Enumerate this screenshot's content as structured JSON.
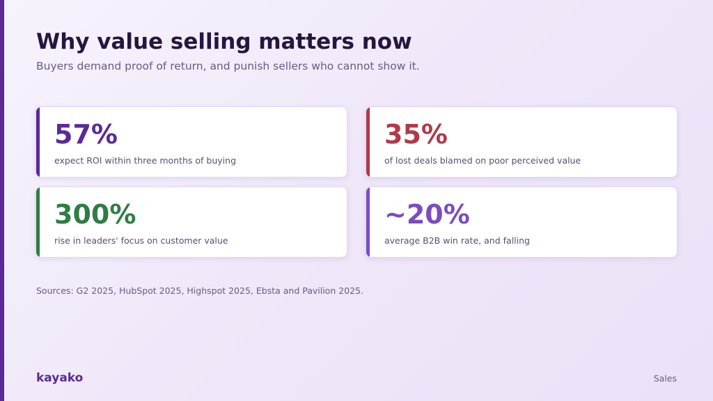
{
  "slide": {
    "title": "Why value selling matters now",
    "subtitle": "Buyers demand proof of return, and punish sellers who cannot show it."
  },
  "theme": {
    "rail_color": "#5b2a96",
    "title_color": "#26163f"
  },
  "stats": [
    {
      "value": "57%",
      "label": "expect ROI within three months of buying",
      "color": "#5b2a96"
    },
    {
      "value": "35%",
      "label": "of lost deals blamed on poor perceived value",
      "color": "#b03a48"
    },
    {
      "value": "300%",
      "label": "rise in leaders' focus on customer value",
      "color": "#2e7d46"
    },
    {
      "value": "~20%",
      "label": "average B2B win rate, and falling",
      "color": "#7b4cbf"
    }
  ],
  "sources": "Sources: G2 2025, HubSpot 2025, Highspot 2025, Ebsta and Pavilion 2025.",
  "footer": {
    "brand": "kayako",
    "section": "Sales"
  }
}
